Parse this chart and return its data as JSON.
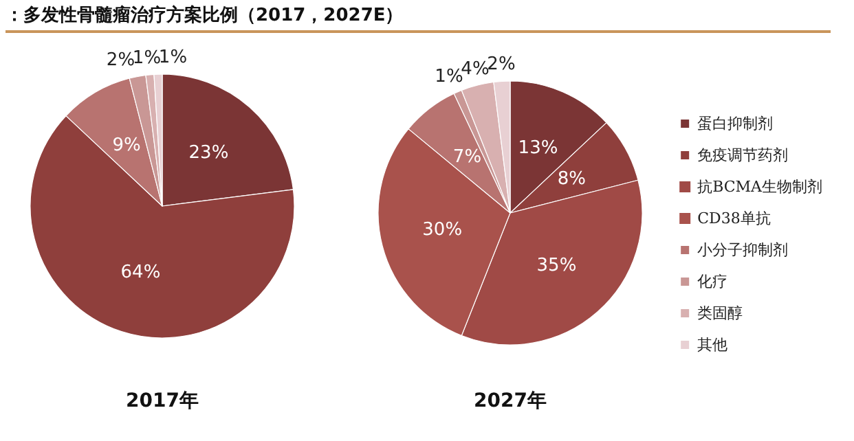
{
  "chart_data": {
    "type": "pie",
    "title": "：多发性骨髓瘤治疗方案比例（2017，2027E）",
    "legend": "right",
    "data_labels": true,
    "categories": [
      "蛋白抑制剂",
      "免疫调节药剂",
      "抗BCMA生物制剂",
      "CD38单抗",
      "小分子抑制剂",
      "化疗",
      "类固醇",
      "其他"
    ],
    "colors": [
      "#7b3535",
      "#8f3f3c",
      "#a04a46",
      "#a9524c",
      "#b87370",
      "#c99795",
      "#d8b0b0",
      "#e8d0d3"
    ],
    "series": [
      {
        "name": "2017年",
        "values": [
          23,
          64,
          0,
          0,
          9,
          2,
          1,
          1
        ],
        "value_labels": [
          "23%",
          "64%",
          null,
          null,
          "9%",
          "2%",
          "1%",
          "1%"
        ]
      },
      {
        "name": "2027年",
        "values": [
          13,
          8,
          35,
          30,
          7,
          1,
          4,
          2
        ],
        "value_labels": [
          "13%",
          "8%",
          "35%",
          "30%",
          "7%",
          "1%",
          "4%",
          "2%"
        ]
      }
    ]
  }
}
